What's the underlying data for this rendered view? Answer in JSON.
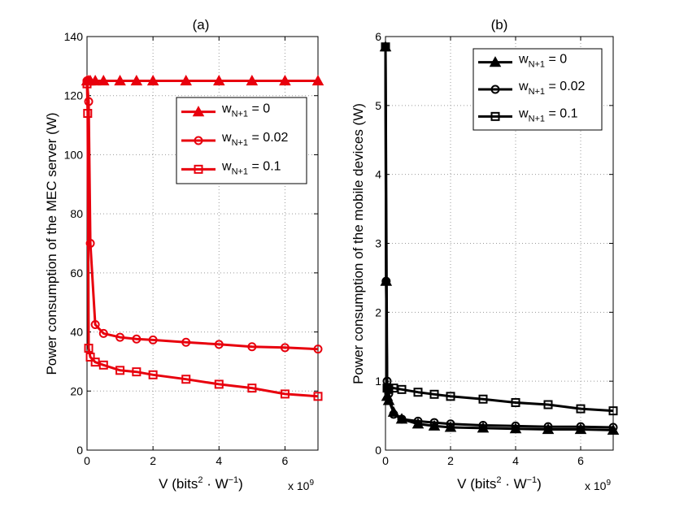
{
  "chart_data": [
    {
      "type": "line",
      "title": "(a)",
      "xlabel": "V (bits² · W⁻¹)",
      "xlabel_main": "V (bits",
      "xlabel_sup1": "2",
      "xlabel_mid": " · W",
      "xlabel_sup2": "−1",
      "xlabel_end": ")",
      "ylabel": "Power consumption of the MEC server (W)",
      "xlim": [
        0,
        7
      ],
      "ylim": [
        0,
        140
      ],
      "x_ticks": [
        0,
        2,
        4,
        6
      ],
      "y_ticks": [
        0,
        20,
        40,
        60,
        80,
        100,
        120,
        140
      ],
      "x_tick_labels": [
        "0",
        "2",
        "4",
        "6"
      ],
      "y_tick_labels": [
        "0",
        "20",
        "40",
        "60",
        "80",
        "100",
        "120",
        "140"
      ],
      "x_scale_label": "x 10",
      "x_scale_exp": "9",
      "grid": true,
      "color": "#e8000d",
      "legend_position": "upper-right",
      "series": [
        {
          "name": "w_{N+1} = 0",
          "marker": "triangle",
          "x": [
            0,
            0.05,
            0.1,
            0.25,
            0.5,
            1,
            1.5,
            2,
            3,
            4,
            5,
            6,
            7
          ],
          "y": [
            125,
            125,
            125,
            125,
            125,
            125,
            125,
            125,
            125,
            125,
            125,
            125,
            125
          ]
        },
        {
          "name": "w_{N+1} = 0.02",
          "marker": "circle",
          "x": [
            0,
            0.05,
            0.1,
            0.25,
            0.5,
            1,
            1.5,
            2,
            3,
            4,
            5,
            6,
            7
          ],
          "y": [
            125,
            118,
            70,
            42.5,
            39.5,
            38.2,
            37.6,
            37.3,
            36.5,
            35.8,
            35,
            34.7,
            34.2
          ]
        },
        {
          "name": "w_{N+1} = 0.1",
          "marker": "square",
          "x": [
            0,
            0.02,
            0.05,
            0.1,
            0.25,
            0.5,
            1,
            1.5,
            2,
            3,
            4,
            5,
            6,
            7
          ],
          "y": [
            124,
            114,
            34.5,
            31.5,
            29.8,
            28.8,
            27,
            26.5,
            25.5,
            24,
            22.3,
            21,
            19,
            18.2
          ]
        }
      ],
      "legend_entries": [
        {
          "base": "w",
          "sub": "N+1",
          "rest": " = 0"
        },
        {
          "base": "w",
          "sub": "N+1",
          "rest": " = 0.02"
        },
        {
          "base": "w",
          "sub": "N+1",
          "rest": " = 0.1"
        }
      ]
    },
    {
      "type": "line",
      "title": "(b)",
      "xlabel": "V (bits² · W⁻¹)",
      "xlabel_main": "V (bits",
      "xlabel_sup1": "2",
      "xlabel_mid": " · W",
      "xlabel_sup2": "−1",
      "xlabel_end": ")",
      "ylabel": "Power consumption of the mobile devices (W)",
      "xlim": [
        0,
        7
      ],
      "ylim": [
        0,
        6
      ],
      "x_ticks": [
        0,
        2,
        4,
        6
      ],
      "y_ticks": [
        0,
        1,
        2,
        3,
        4,
        5,
        6
      ],
      "x_tick_labels": [
        "0",
        "2",
        "4",
        "6"
      ],
      "y_tick_labels": [
        "0",
        "1",
        "2",
        "3",
        "4",
        "5",
        "6"
      ],
      "x_scale_label": "x 10",
      "x_scale_exp": "9",
      "grid": true,
      "color": "#000000",
      "legend_position": "upper-right",
      "series": [
        {
          "name": "w_{N+1} = 0",
          "marker": "triangle",
          "x": [
            0,
            0.02,
            0.05,
            0.1,
            0.25,
            0.5,
            1,
            1.5,
            2,
            3,
            4,
            5,
            6,
            7
          ],
          "y": [
            5.85,
            2.45,
            0.78,
            0.72,
            0.55,
            0.45,
            0.38,
            0.35,
            0.33,
            0.32,
            0.31,
            0.3,
            0.3,
            0.29
          ]
        },
        {
          "name": "w_{N+1} = 0.02",
          "marker": "circle",
          "x": [
            0,
            0.02,
            0.05,
            0.1,
            0.25,
            0.5,
            1,
            1.5,
            2,
            3,
            4,
            5,
            6,
            7
          ],
          "y": [
            5.85,
            2.45,
            1.0,
            0.82,
            0.52,
            0.45,
            0.42,
            0.4,
            0.38,
            0.36,
            0.35,
            0.34,
            0.34,
            0.33
          ]
        },
        {
          "name": "w_{N+1} = 0.1",
          "marker": "square",
          "x": [
            0,
            0.05,
            0.1,
            0.25,
            0.5,
            1,
            1.5,
            2,
            3,
            4,
            5,
            6,
            7
          ],
          "y": [
            5.85,
            0.9,
            0.88,
            0.9,
            0.88,
            0.84,
            0.81,
            0.78,
            0.74,
            0.69,
            0.66,
            0.6,
            0.57
          ]
        }
      ],
      "legend_entries": [
        {
          "base": "w",
          "sub": "N+1",
          "rest": " = 0"
        },
        {
          "base": "w",
          "sub": "N+1",
          "rest": " = 0.02"
        },
        {
          "base": "w",
          "sub": "N+1",
          "rest": " = 0.1"
        }
      ]
    }
  ]
}
